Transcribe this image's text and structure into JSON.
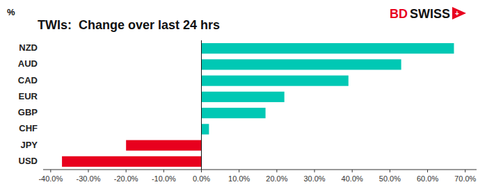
{
  "chart_data": {
    "type": "bar",
    "orientation": "horizontal",
    "title": "TWIs:  Change over last 24 hrs",
    "ylabel": "%",
    "categories": [
      "NZD",
      "AUD",
      "CAD",
      "EUR",
      "GBP",
      "CHF",
      "JPY",
      "USD"
    ],
    "values": [
      0.67,
      0.53,
      0.39,
      0.22,
      0.17,
      0.02,
      -0.2,
      -0.37
    ],
    "colors": [
      "#00C8B4",
      "#00C8B4",
      "#00C8B4",
      "#00C8B4",
      "#00C8B4",
      "#00C8B4",
      "#E8001E",
      "#E8001E"
    ],
    "xlim": [
      -0.42,
      0.73
    ],
    "xticks": [
      {
        "value": -0.4,
        "label": "-40.0%"
      },
      {
        "value": -0.3,
        "label": "-30.0%"
      },
      {
        "value": -0.2,
        "label": "-20.0%"
      },
      {
        "value": -0.1,
        "label": "-10.0%"
      },
      {
        "value": 0.0,
        "label": "0.0%"
      },
      {
        "value": 0.1,
        "label": "10.0%"
      },
      {
        "value": 0.2,
        "label": "20.0%"
      },
      {
        "value": 0.3,
        "label": "30.0%"
      },
      {
        "value": 0.4,
        "label": "40.0%"
      },
      {
        "value": 0.5,
        "label": "50.0%"
      },
      {
        "value": 0.6,
        "label": "60.0%"
      },
      {
        "value": 0.7,
        "label": "70.0%"
      }
    ],
    "grid": false,
    "annotations": [
      {
        "text": "BD",
        "color": "#E8001E"
      },
      {
        "text": "SWISS",
        "color": "#111111"
      },
      {
        "text": "+",
        "color": "#E8001E",
        "marker": "triangle"
      }
    ]
  }
}
